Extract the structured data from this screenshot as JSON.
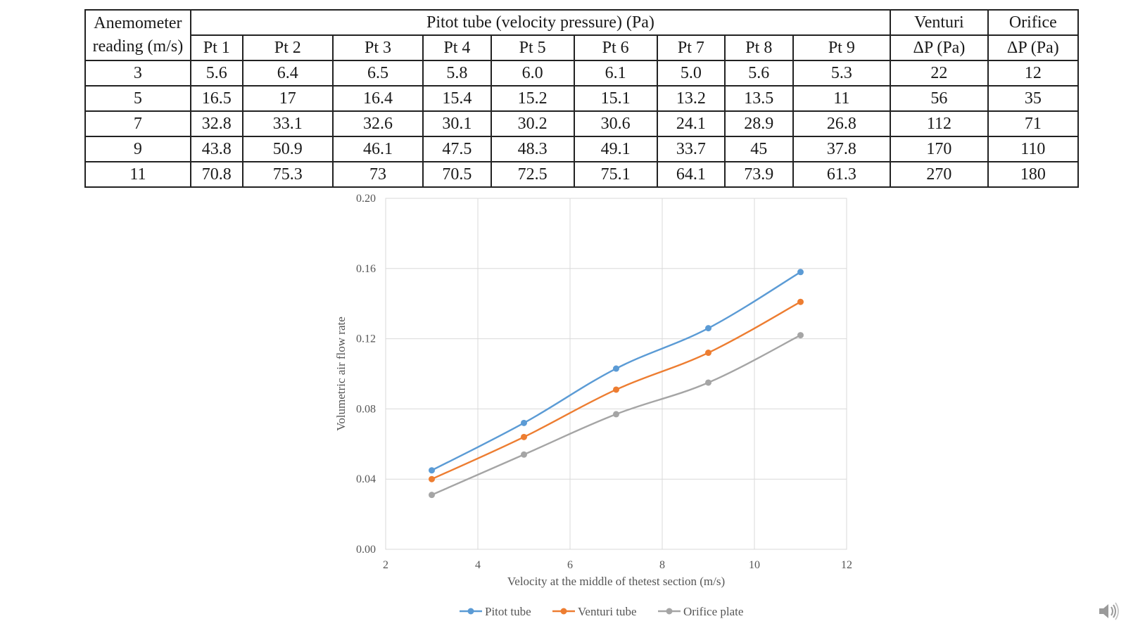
{
  "table": {
    "col_header_1": "Anemometer",
    "col_header_2": "reading (m/s)",
    "group_pitot": "Pitot tube (velocity pressure) (Pa)",
    "group_venturi": "Venturi",
    "group_orifice": "Orifice",
    "pitot_points": [
      "Pt 1",
      "Pt 2",
      "Pt 3",
      "Pt 4",
      "Pt 5",
      "Pt 6",
      "Pt 7",
      "Pt 8",
      "Pt 9"
    ],
    "venturi_unit": "ΔP (Pa)",
    "orifice_unit": "ΔP (Pa)",
    "rows": [
      [
        "3",
        "5.6",
        "6.4",
        "6.5",
        "5.8",
        "6.0",
        "6.1",
        "5.0",
        "5.6",
        "5.3",
        "22",
        "12"
      ],
      [
        "5",
        "16.5",
        "17",
        "16.4",
        "15.4",
        "15.2",
        "15.1",
        "13.2",
        "13.5",
        "11",
        "56",
        "35"
      ],
      [
        "7",
        "32.8",
        "33.1",
        "32.6",
        "30.1",
        "30.2",
        "30.6",
        "24.1",
        "28.9",
        "26.8",
        "112",
        "71"
      ],
      [
        "9",
        "43.8",
        "50.9",
        "46.1",
        "47.5",
        "48.3",
        "49.1",
        "33.7",
        "45",
        "37.8",
        "170",
        "110"
      ],
      [
        "11",
        "70.8",
        "75.3",
        "73",
        "70.5",
        "72.5",
        "75.1",
        "64.1",
        "73.9",
        "61.3",
        "270",
        "180"
      ]
    ]
  },
  "chart_data": {
    "type": "line",
    "title": "",
    "xlabel": "Velocity at the middle of thetest section (m/s)",
    "ylabel": "Volumetric air flow rate",
    "xlim": [
      2,
      12
    ],
    "ylim": [
      0,
      0.2
    ],
    "xticks": [
      "2",
      "4",
      "6",
      "8",
      "10",
      "12"
    ],
    "yticks": [
      "0.00",
      "0.04",
      "0.08",
      "0.12",
      "0.16",
      "0.20"
    ],
    "grid": true,
    "legend_position": "bottom",
    "x": [
      3,
      5,
      7,
      9,
      11
    ],
    "series": [
      {
        "name": "Pitot tube",
        "color": "#5b9bd5",
        "values": [
          0.045,
          0.072,
          0.103,
          0.126,
          0.158
        ]
      },
      {
        "name": "Venturi tube",
        "color": "#ed7d31",
        "values": [
          0.04,
          0.064,
          0.091,
          0.112,
          0.141
        ]
      },
      {
        "name": "Orifice plate",
        "color": "#a5a5a5",
        "values": [
          0.031,
          0.054,
          0.077,
          0.095,
          0.122
        ]
      }
    ]
  },
  "icons": {
    "speaker": "speaker-icon"
  }
}
